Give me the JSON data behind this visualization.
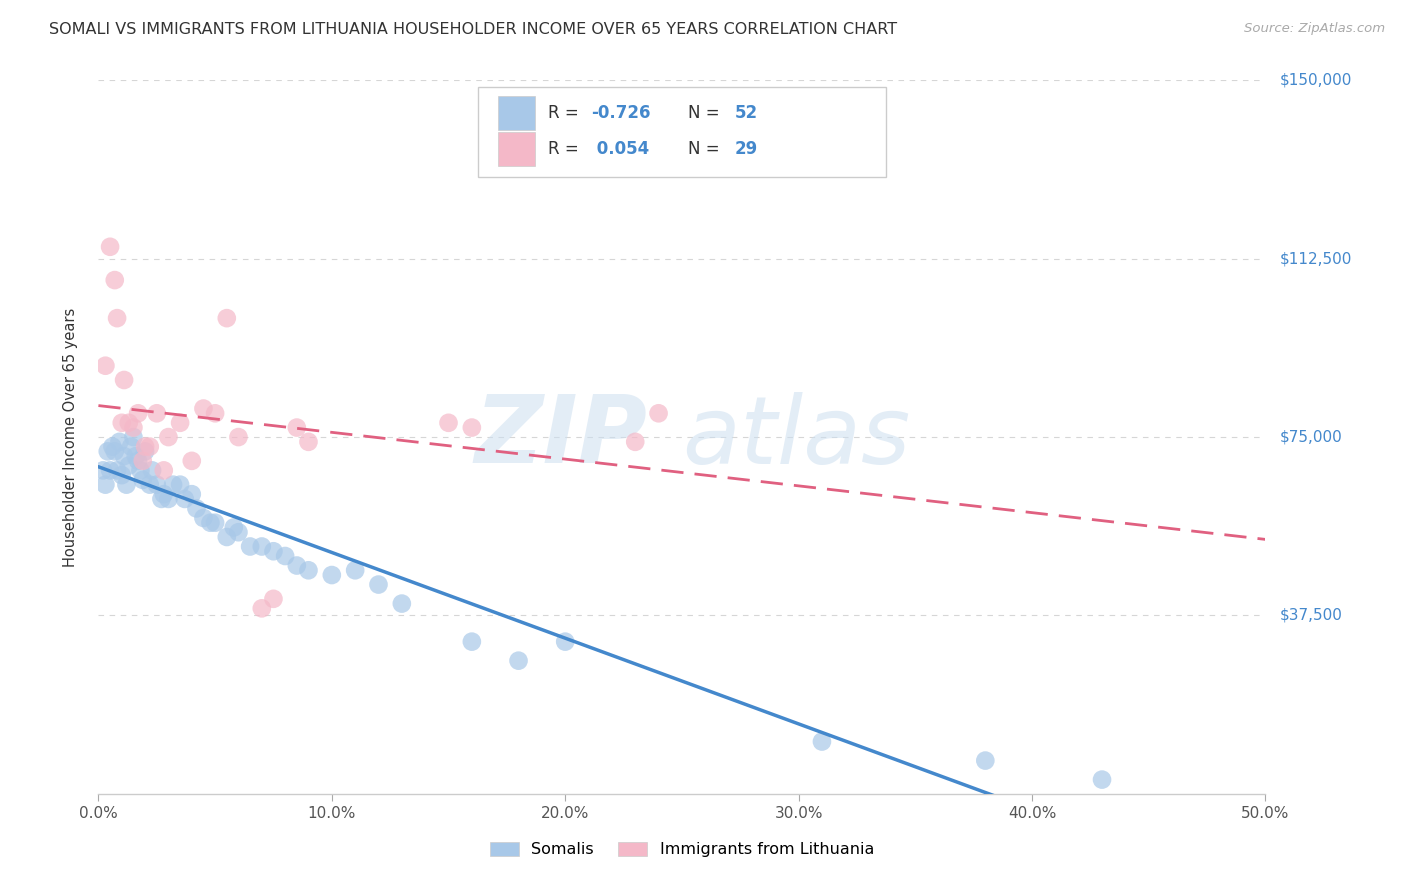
{
  "title": "SOMALI VS IMMIGRANTS FROM LITHUANIA HOUSEHOLDER INCOME OVER 65 YEARS CORRELATION CHART",
  "source": "Source: ZipAtlas.com",
  "ylabel": "Householder Income Over 65 years",
  "xlabel_ticks": [
    "0.0%",
    "10.0%",
    "20.0%",
    "30.0%",
    "40.0%",
    "50.0%"
  ],
  "xlabel_vals": [
    0.0,
    0.1,
    0.2,
    0.3,
    0.4,
    0.5
  ],
  "ylabel_ticks": [
    "$37,500",
    "$75,000",
    "$112,500",
    "$150,000"
  ],
  "ylabel_vals": [
    37500,
    75000,
    112500,
    150000
  ],
  "watermark_zip": "ZIP",
  "watermark_atlas": "atlas",
  "somali_color": "#a8c8e8",
  "lithuania_color": "#f4b8c8",
  "somali_line_color": "#4488cc",
  "lithuania_line_color": "#e06080",
  "somali_scatter_x": [
    0.002,
    0.003,
    0.004,
    0.005,
    0.006,
    0.007,
    0.008,
    0.009,
    0.01,
    0.011,
    0.012,
    0.013,
    0.014,
    0.015,
    0.016,
    0.017,
    0.018,
    0.019,
    0.02,
    0.022,
    0.023,
    0.025,
    0.027,
    0.028,
    0.03,
    0.032,
    0.035,
    0.037,
    0.04,
    0.042,
    0.045,
    0.048,
    0.05,
    0.055,
    0.058,
    0.06,
    0.065,
    0.07,
    0.075,
    0.08,
    0.085,
    0.09,
    0.1,
    0.11,
    0.12,
    0.13,
    0.16,
    0.18,
    0.2,
    0.31,
    0.38,
    0.43
  ],
  "somali_scatter_y": [
    68000,
    65000,
    72000,
    68000,
    73000,
    72000,
    68000,
    74000,
    67000,
    71000,
    65000,
    69000,
    73000,
    75000,
    71000,
    70000,
    68000,
    66000,
    72000,
    65000,
    68000,
    65000,
    62000,
    63000,
    62000,
    65000,
    65000,
    62000,
    63000,
    60000,
    58000,
    57000,
    57000,
    54000,
    56000,
    55000,
    52000,
    52000,
    51000,
    50000,
    48000,
    47000,
    46000,
    47000,
    44000,
    40000,
    32000,
    28000,
    32000,
    11000,
    7000,
    3000
  ],
  "lithuania_scatter_x": [
    0.003,
    0.005,
    0.007,
    0.008,
    0.01,
    0.011,
    0.013,
    0.015,
    0.017,
    0.019,
    0.02,
    0.022,
    0.025,
    0.028,
    0.03,
    0.035,
    0.04,
    0.045,
    0.05,
    0.055,
    0.06,
    0.07,
    0.075,
    0.085,
    0.09,
    0.15,
    0.16,
    0.23,
    0.24
  ],
  "lithuania_scatter_y": [
    90000,
    115000,
    108000,
    100000,
    78000,
    87000,
    78000,
    77000,
    80000,
    70000,
    73000,
    73000,
    80000,
    68000,
    75000,
    78000,
    70000,
    81000,
    80000,
    100000,
    75000,
    39000,
    41000,
    77000,
    74000,
    78000,
    77000,
    74000,
    80000
  ],
  "xmin": 0.0,
  "xmax": 0.5,
  "ymin": 0,
  "ymax": 150000,
  "background_color": "#ffffff",
  "grid_color": "#cccccc",
  "title_color": "#333333",
  "right_axis_color": "#4488cc",
  "bottom_legend_color": "#333333"
}
